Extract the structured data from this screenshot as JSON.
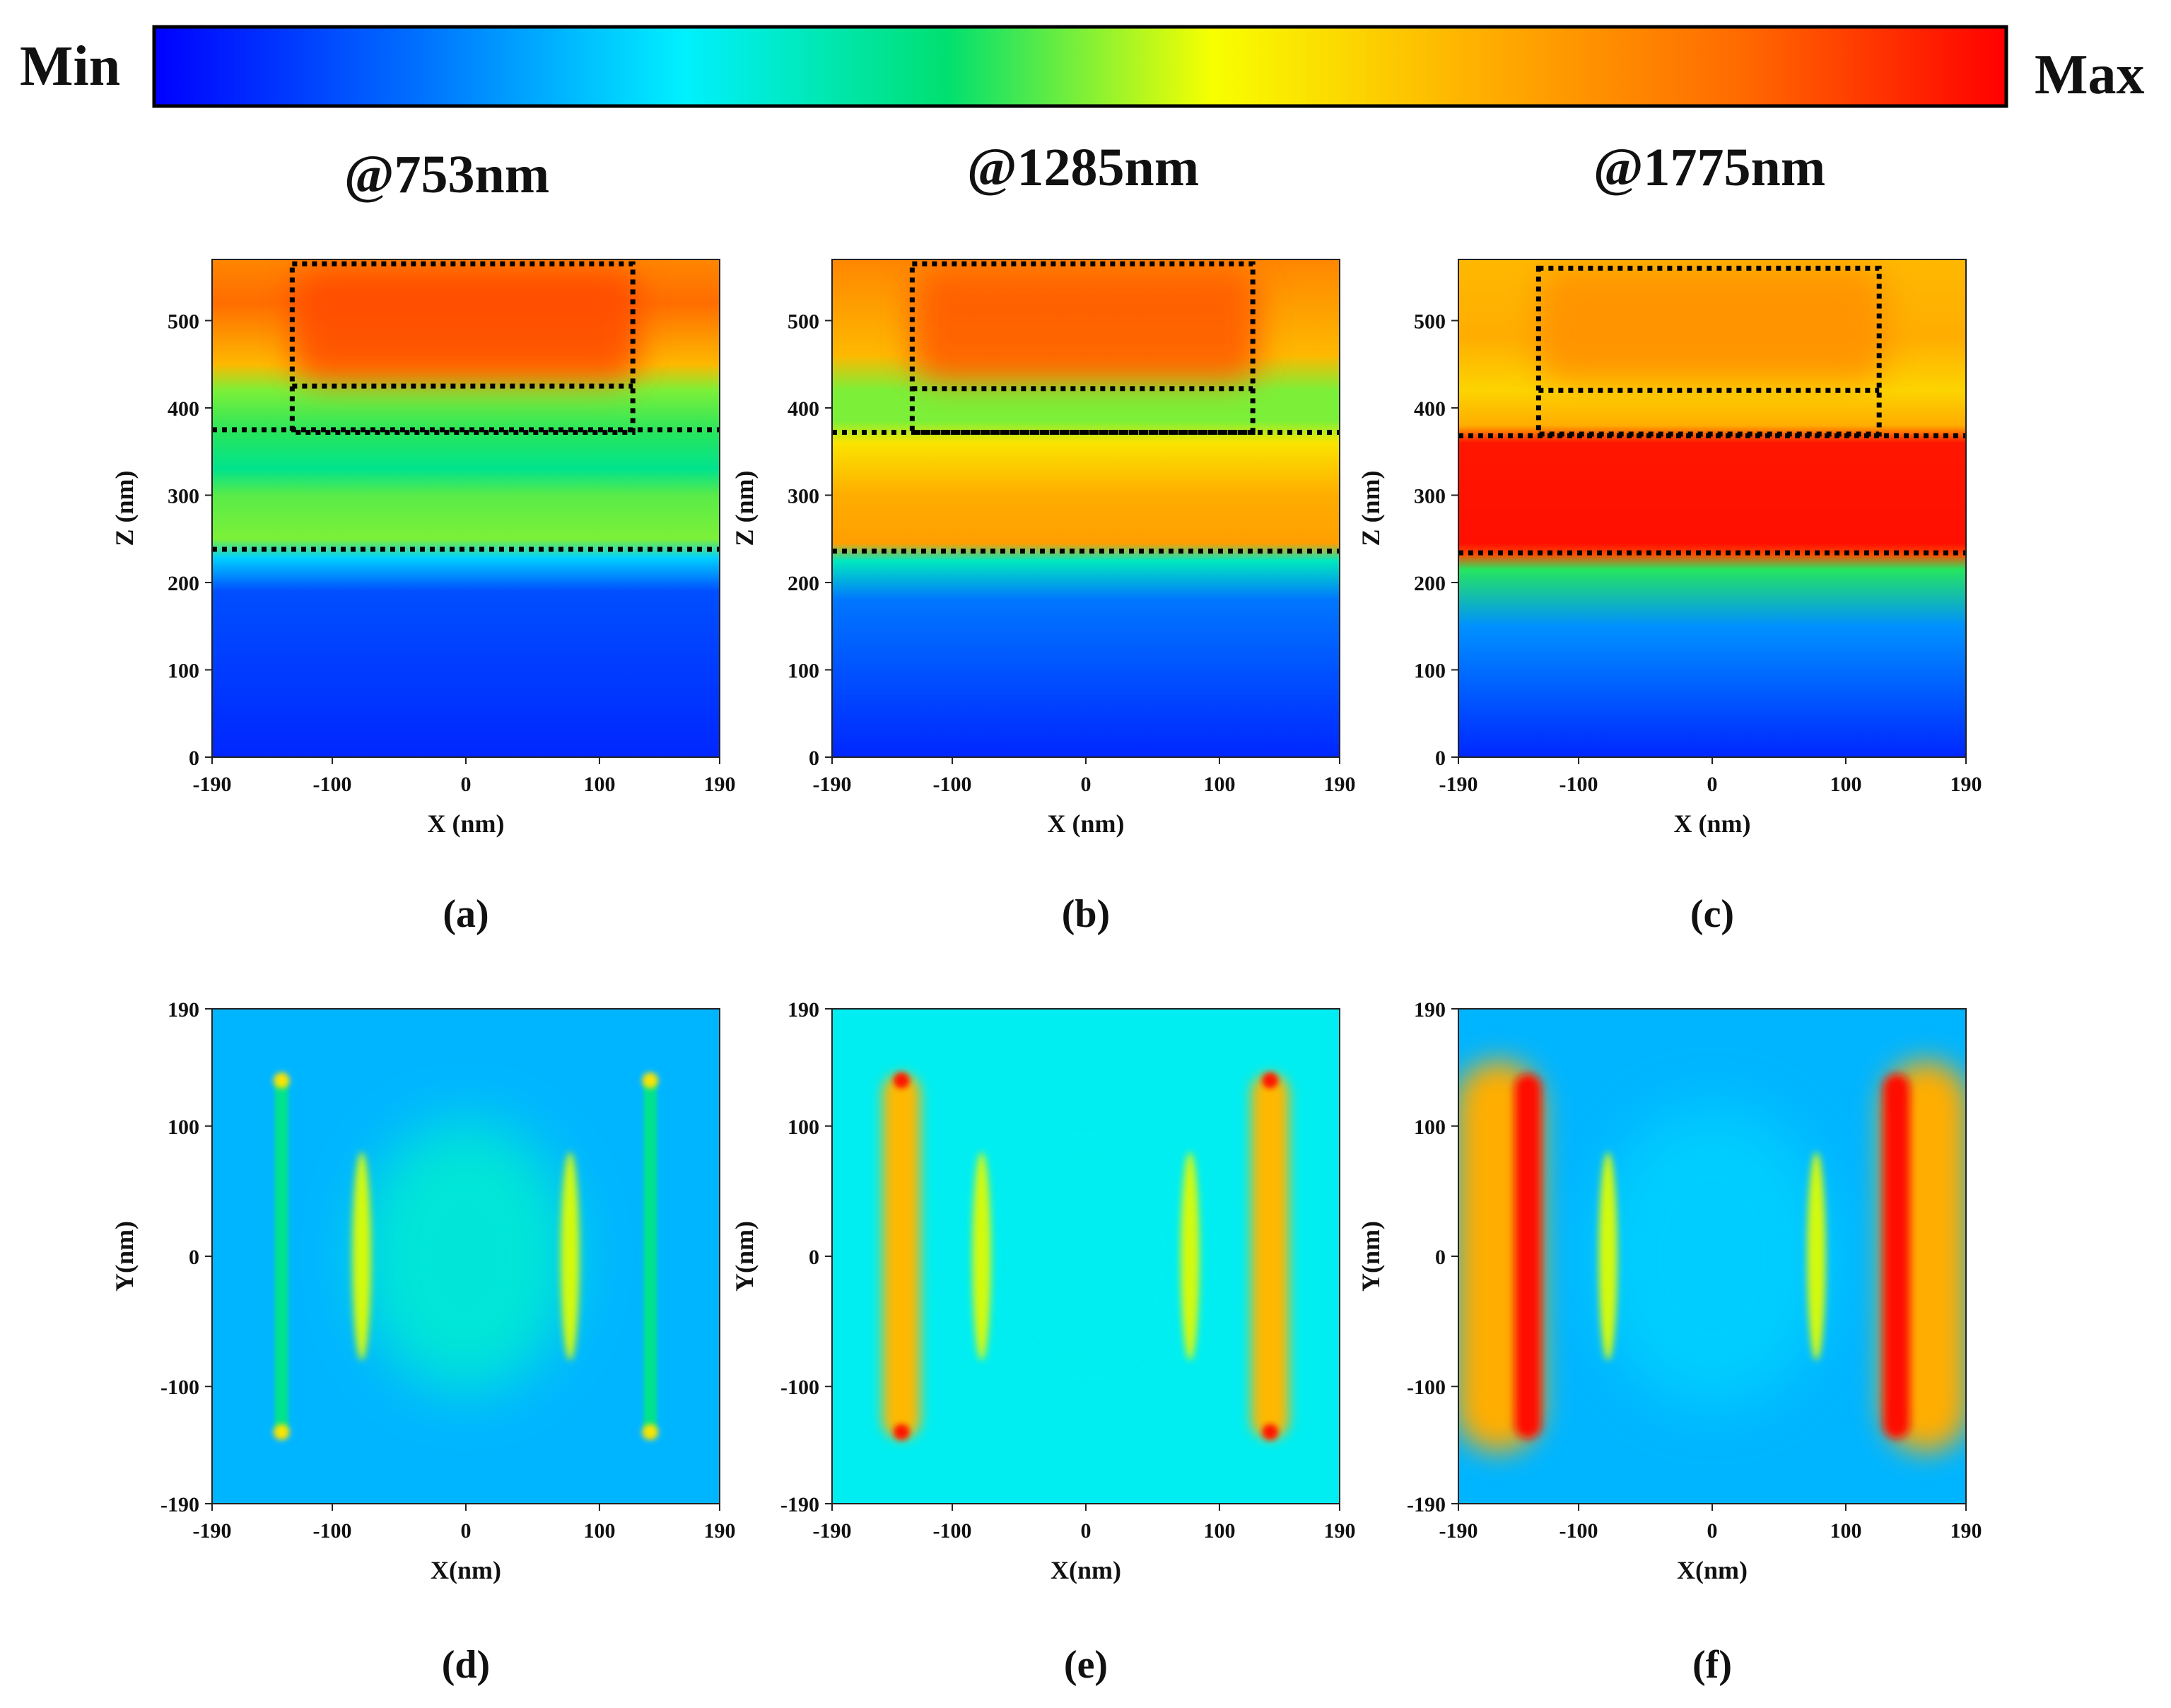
{
  "colorbar": {
    "min_label": "Min",
    "max_label": "Max",
    "stops": [
      "#0000ff",
      "#0070ff",
      "#00f0ff",
      "#00e070",
      "#f8ff00",
      "#ffb000",
      "#ff6a00",
      "#ff0000"
    ]
  },
  "chart_data": [
    {
      "id": "a",
      "type": "heatmap",
      "caption": "(a)",
      "title": "@753nm",
      "view": "side",
      "xlabel": "X (nm)",
      "ylabel": "Z (nm)",
      "xlim": [
        -190,
        190
      ],
      "ylim": [
        0,
        570
      ],
      "xticks": [
        "-190",
        "-100",
        "0",
        "100",
        "190"
      ],
      "yticks": [
        "0",
        "100",
        "200",
        "300",
        "400",
        "500"
      ],
      "field_profile": [
        {
          "z": 0,
          "level": 0.05
        },
        {
          "z": 190,
          "level": 0.1
        },
        {
          "z": 228,
          "level": 0.25
        },
        {
          "z": 250,
          "level": 0.5
        },
        {
          "z": 300,
          "level": 0.48
        },
        {
          "z": 330,
          "level": 0.4
        },
        {
          "z": 370,
          "level": 0.45
        },
        {
          "z": 420,
          "level": 0.5
        },
        {
          "z": 450,
          "level": 0.7
        },
        {
          "z": 520,
          "level": 0.85
        },
        {
          "z": 570,
          "level": 0.8
        }
      ],
      "hotspot": {
        "x": [
          -130,
          130
        ],
        "z": [
          430,
          560
        ],
        "level": 0.9
      },
      "outlines": [
        {
          "x": [
            -130,
            125
          ],
          "z": [
            372,
            565
          ]
        },
        {
          "x": [
            -130,
            125
          ],
          "z": [
            425,
            425
          ]
        },
        {
          "x": [
            -190,
            190
          ],
          "z": [
            375,
            375
          ]
        },
        {
          "x": [
            -190,
            190
          ],
          "z": [
            238,
            238
          ]
        }
      ]
    },
    {
      "id": "b",
      "type": "heatmap",
      "caption": "(b)",
      "title": "@1285nm",
      "view": "side",
      "xlabel": "X (nm)",
      "ylabel": "Z (nm)",
      "xlim": [
        -190,
        190
      ],
      "ylim": [
        0,
        570
      ],
      "xticks": [
        "-190",
        "-100",
        "0",
        "100",
        "190"
      ],
      "yticks": [
        "0",
        "100",
        "200",
        "300",
        "400",
        "500"
      ],
      "field_profile": [
        {
          "z": 0,
          "level": 0.05
        },
        {
          "z": 180,
          "level": 0.15
        },
        {
          "z": 225,
          "level": 0.35
        },
        {
          "z": 245,
          "level": 0.75
        },
        {
          "z": 300,
          "level": 0.72
        },
        {
          "z": 360,
          "level": 0.62
        },
        {
          "z": 385,
          "level": 0.5
        },
        {
          "z": 420,
          "level": 0.5
        },
        {
          "z": 460,
          "level": 0.7
        },
        {
          "z": 570,
          "level": 0.8
        }
      ],
      "hotspot": {
        "x": [
          -130,
          130
        ],
        "z": [
          430,
          560
        ],
        "level": 0.88
      },
      "outlines": [
        {
          "x": [
            -130,
            125
          ],
          "z": [
            372,
            565
          ]
        },
        {
          "x": [
            -130,
            125
          ],
          "z": [
            422,
            422
          ]
        },
        {
          "x": [
            -190,
            190
          ],
          "z": [
            372,
            372
          ]
        },
        {
          "x": [
            -190,
            190
          ],
          "z": [
            236,
            236
          ]
        }
      ]
    },
    {
      "id": "c",
      "type": "heatmap",
      "caption": "(c)",
      "title": "@1775nm",
      "view": "side",
      "xlabel": "X (nm)",
      "ylabel": "Z (nm)",
      "xlim": [
        -190,
        190
      ],
      "ylim": [
        0,
        570
      ],
      "xticks": [
        "-190",
        "-100",
        "0",
        "100",
        "190"
      ],
      "yticks": [
        "0",
        "100",
        "200",
        "300",
        "400",
        "500"
      ],
      "field_profile": [
        {
          "z": 0,
          "level": 0.05
        },
        {
          "z": 150,
          "level": 0.18
        },
        {
          "z": 215,
          "level": 0.45
        },
        {
          "z": 232,
          "level": 0.9
        },
        {
          "z": 245,
          "level": 0.98
        },
        {
          "z": 360,
          "level": 0.97
        },
        {
          "z": 380,
          "level": 0.72
        },
        {
          "z": 420,
          "level": 0.65
        },
        {
          "z": 480,
          "level": 0.72
        },
        {
          "z": 570,
          "level": 0.7
        }
      ],
      "hotspot": {
        "x": [
          -130,
          130
        ],
        "z": [
          430,
          560
        ],
        "level": 0.78
      },
      "outlines": [
        {
          "x": [
            -130,
            125
          ],
          "z": [
            370,
            560
          ]
        },
        {
          "x": [
            -130,
            125
          ],
          "z": [
            420,
            420
          ]
        },
        {
          "x": [
            -190,
            190
          ],
          "z": [
            368,
            368
          ]
        },
        {
          "x": [
            -190,
            190
          ],
          "z": [
            234,
            234
          ]
        }
      ]
    },
    {
      "id": "d",
      "type": "heatmap",
      "caption": "(d)",
      "view": "top",
      "xlabel": "X(nm)",
      "ylabel": "Y(nm)",
      "xlim": [
        -190,
        190
      ],
      "ylim": [
        -190,
        190
      ],
      "xticks": [
        "-190",
        "-100",
        "0",
        "100",
        "190"
      ],
      "yticks": [
        "-190",
        "-100",
        "0",
        "100",
        "190"
      ],
      "background_level": 0.22,
      "features": [
        {
          "kind": "edge",
          "x": -138,
          "y": [
            -135,
            135
          ],
          "level": 0.4,
          "spread": 5
        },
        {
          "kind": "edge",
          "x": 138,
          "y": [
            -135,
            135
          ],
          "level": 0.4,
          "spread": 5
        },
        {
          "kind": "glow",
          "x": 0,
          "y": 0,
          "level": 0.33,
          "spread": 80
        },
        {
          "kind": "crescent",
          "x": -78,
          "y": [
            -80,
            80
          ],
          "level": 0.55
        },
        {
          "kind": "crescent",
          "x": 78,
          "y": [
            -80,
            80
          ],
          "level": 0.55
        },
        {
          "kind": "spot",
          "x": -138,
          "y": 135,
          "level": 0.62
        },
        {
          "kind": "spot",
          "x": 138,
          "y": 135,
          "level": 0.62
        },
        {
          "kind": "spot",
          "x": -138,
          "y": -135,
          "level": 0.62
        },
        {
          "kind": "spot",
          "x": 138,
          "y": -135,
          "level": 0.62
        }
      ]
    },
    {
      "id": "e",
      "type": "heatmap",
      "caption": "(e)",
      "view": "top",
      "xlabel": "X(nm)",
      "ylabel": "Y(nm)",
      "xlim": [
        -190,
        190
      ],
      "ylim": [
        -190,
        190
      ],
      "xticks": [
        "-190",
        "-100",
        "0",
        "100",
        "190"
      ],
      "yticks": [
        "-190",
        "-100",
        "0",
        "100",
        "190"
      ],
      "background_level": 0.3,
      "features": [
        {
          "kind": "glow",
          "x": 0,
          "y": 0,
          "level": 0.3,
          "spread": 70
        },
        {
          "kind": "bar",
          "x": -138,
          "y": [
            -140,
            140
          ],
          "level": 0.7,
          "spread": 14
        },
        {
          "kind": "bar",
          "x": 138,
          "y": [
            -140,
            140
          ],
          "level": 0.7,
          "spread": 14
        },
        {
          "kind": "crescent",
          "x": -78,
          "y": [
            -80,
            80
          ],
          "level": 0.55
        },
        {
          "kind": "crescent",
          "x": 78,
          "y": [
            -80,
            80
          ],
          "level": 0.55
        },
        {
          "kind": "spot",
          "x": -138,
          "y": 135,
          "level": 0.97
        },
        {
          "kind": "spot",
          "x": 138,
          "y": 135,
          "level": 0.97
        },
        {
          "kind": "spot",
          "x": -138,
          "y": -135,
          "level": 0.97
        },
        {
          "kind": "spot",
          "x": 138,
          "y": -135,
          "level": 0.97
        }
      ]
    },
    {
      "id": "f",
      "type": "heatmap",
      "caption": "(f)",
      "view": "top",
      "xlabel": "X(nm)",
      "ylabel": "Y(nm)",
      "xlim": [
        -190,
        190
      ],
      "ylim": [
        -190,
        190
      ],
      "xticks": [
        "-190",
        "-100",
        "0",
        "100",
        "190"
      ],
      "yticks": [
        "-190",
        "-100",
        "0",
        "100",
        "190"
      ],
      "background_level": 0.22,
      "features": [
        {
          "kind": "glow",
          "x": 0,
          "y": 0,
          "level": 0.25,
          "spread": 90
        },
        {
          "kind": "bar",
          "x": -160,
          "y": [
            -150,
            150
          ],
          "level": 0.72,
          "spread": 32
        },
        {
          "kind": "bar",
          "x": 160,
          "y": [
            -150,
            150
          ],
          "level": 0.72,
          "spread": 32
        },
        {
          "kind": "bar",
          "x": -138,
          "y": [
            -140,
            140
          ],
          "level": 0.98,
          "spread": 10
        },
        {
          "kind": "bar",
          "x": 138,
          "y": [
            -140,
            140
          ],
          "level": 0.98,
          "spread": 10
        },
        {
          "kind": "crescent",
          "x": -78,
          "y": [
            -80,
            80
          ],
          "level": 0.55
        },
        {
          "kind": "crescent",
          "x": 78,
          "y": [
            -80,
            80
          ],
          "level": 0.55
        }
      ]
    }
  ]
}
